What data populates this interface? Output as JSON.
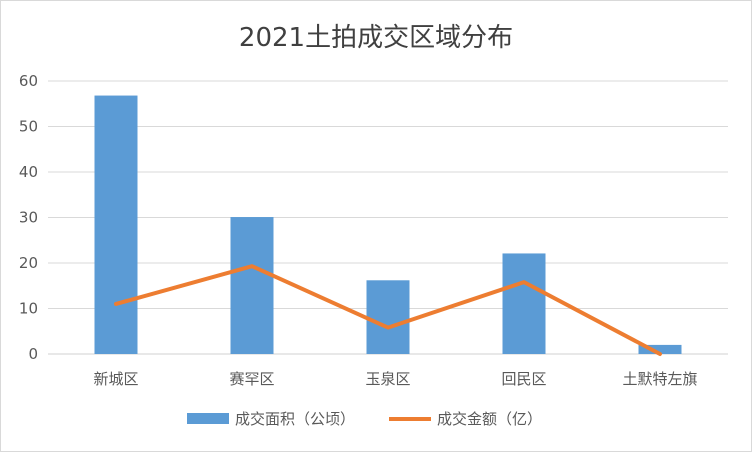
{
  "chart_data": {
    "type": "bar",
    "title": "2021土拍成交区域分布",
    "categories": [
      "新城区",
      "赛罕区",
      "玉泉区",
      "回民区",
      "土默特左旗"
    ],
    "series": [
      {
        "name": "成交面积（公顷）",
        "type": "bar",
        "color": "#5b9bd5",
        "values": [
          56.8,
          30.1,
          16.2,
          22.1,
          2.0
        ]
      },
      {
        "name": "成交金额（亿）",
        "type": "line",
        "color": "#ed7d31",
        "values": [
          11.0,
          19.3,
          5.8,
          15.8,
          0.0
        ]
      }
    ],
    "ylim": [
      0,
      60
    ],
    "yticks": [
      0,
      10,
      20,
      30,
      40,
      50,
      60
    ],
    "grid": true,
    "legend": "bottom"
  }
}
